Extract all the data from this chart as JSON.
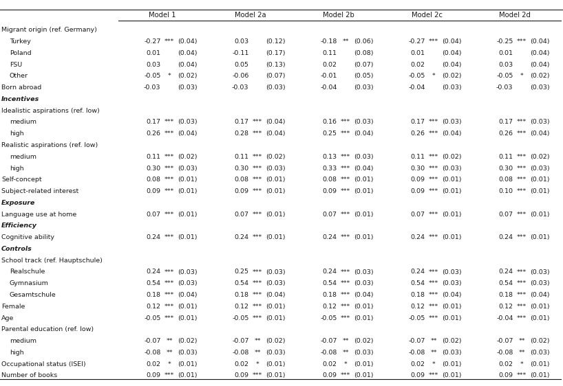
{
  "columns": [
    "Model 1",
    "Model 2a",
    "Model 2b",
    "Model 2c",
    "Model 2d"
  ],
  "rows": [
    {
      "label": "Migrant origin (ref. Germany)",
      "indent": 0,
      "italic": false,
      "data_row": false,
      "values": null
    },
    {
      "label": "Turkey",
      "indent": 1,
      "italic": false,
      "data_row": true,
      "values": [
        [
          -0.27,
          "***",
          "(0.04)"
        ],
        [
          0.03,
          "",
          "(0.12)"
        ],
        [
          -0.18,
          "**",
          "(0.06)"
        ],
        [
          -0.27,
          "***",
          "(0.04)"
        ],
        [
          -0.25,
          "***",
          "(0.04)"
        ]
      ]
    },
    {
      "label": "Poland",
      "indent": 1,
      "italic": false,
      "data_row": true,
      "values": [
        [
          0.01,
          "",
          "(0.04)"
        ],
        [
          -0.11,
          "",
          "(0.17)"
        ],
        [
          0.11,
          "",
          "(0.08)"
        ],
        [
          0.01,
          "",
          "(0.04)"
        ],
        [
          0.01,
          "",
          "(0.04)"
        ]
      ]
    },
    {
      "label": "FSU",
      "indent": 1,
      "italic": false,
      "data_row": true,
      "values": [
        [
          0.03,
          "",
          "(0.04)"
        ],
        [
          0.05,
          "",
          "(0.13)"
        ],
        [
          0.02,
          "",
          "(0.07)"
        ],
        [
          0.02,
          "",
          "(0.04)"
        ],
        [
          0.03,
          "",
          "(0.04)"
        ]
      ]
    },
    {
      "label": "Other",
      "indent": 1,
      "italic": false,
      "data_row": true,
      "values": [
        [
          -0.05,
          "*",
          "(0.02)"
        ],
        [
          -0.06,
          "",
          "(0.07)"
        ],
        [
          -0.01,
          "",
          "(0.05)"
        ],
        [
          -0.05,
          "*",
          "(0.02)"
        ],
        [
          -0.05,
          "*",
          "(0.02)"
        ]
      ]
    },
    {
      "label": "Born abroad",
      "indent": 0,
      "italic": false,
      "data_row": true,
      "values": [
        [
          -0.03,
          "",
          "(0.03)"
        ],
        [
          -0.03,
          "",
          "(0.03)"
        ],
        [
          -0.04,
          "",
          "(0.03)"
        ],
        [
          -0.04,
          "",
          "(0.03)"
        ],
        [
          -0.03,
          "",
          "(0.03)"
        ]
      ]
    },
    {
      "label": "Incentives",
      "indent": 0,
      "italic": true,
      "data_row": false,
      "values": null
    },
    {
      "label": "Idealistic aspirations (ref. low)",
      "indent": 0,
      "italic": false,
      "data_row": false,
      "values": null
    },
    {
      "label": "medium",
      "indent": 1,
      "italic": false,
      "data_row": true,
      "values": [
        [
          0.17,
          "***",
          "(0.03)"
        ],
        [
          0.17,
          "***",
          "(0.04)"
        ],
        [
          0.16,
          "***",
          "(0.03)"
        ],
        [
          0.17,
          "***",
          "(0.03)"
        ],
        [
          0.17,
          "***",
          "(0.03)"
        ]
      ]
    },
    {
      "label": "high",
      "indent": 1,
      "italic": false,
      "data_row": true,
      "values": [
        [
          0.26,
          "***",
          "(0.04)"
        ],
        [
          0.28,
          "***",
          "(0.04)"
        ],
        [
          0.25,
          "***",
          "(0.04)"
        ],
        [
          0.26,
          "***",
          "(0.04)"
        ],
        [
          0.26,
          "***",
          "(0.04)"
        ]
      ]
    },
    {
      "label": "Realistic aspirations (ref. low)",
      "indent": 0,
      "italic": false,
      "data_row": false,
      "values": null
    },
    {
      "label": "medium",
      "indent": 1,
      "italic": false,
      "data_row": true,
      "values": [
        [
          0.11,
          "***",
          "(0.02)"
        ],
        [
          0.11,
          "***",
          "(0.02)"
        ],
        [
          0.13,
          "***",
          "(0.03)"
        ],
        [
          0.11,
          "***",
          "(0.02)"
        ],
        [
          0.11,
          "***",
          "(0.02)"
        ]
      ]
    },
    {
      "label": "high",
      "indent": 1,
      "italic": false,
      "data_row": true,
      "values": [
        [
          0.3,
          "***",
          "(0.03)"
        ],
        [
          0.3,
          "***",
          "(0.03)"
        ],
        [
          0.33,
          "***",
          "(0.04)"
        ],
        [
          0.3,
          "***",
          "(0.03)"
        ],
        [
          0.3,
          "***",
          "(0.03)"
        ]
      ]
    },
    {
      "label": "Self-concept",
      "indent": 0,
      "italic": false,
      "data_row": true,
      "values": [
        [
          0.08,
          "***",
          "(0.01)"
        ],
        [
          0.08,
          "***",
          "(0.01)"
        ],
        [
          0.08,
          "***",
          "(0.01)"
        ],
        [
          0.09,
          "***",
          "(0.01)"
        ],
        [
          0.08,
          "***",
          "(0.01)"
        ]
      ]
    },
    {
      "label": "Subject-related interest",
      "indent": 0,
      "italic": false,
      "data_row": true,
      "values": [
        [
          0.09,
          "***",
          "(0.01)"
        ],
        [
          0.09,
          "***",
          "(0.01)"
        ],
        [
          0.09,
          "***",
          "(0.01)"
        ],
        [
          0.09,
          "***",
          "(0.01)"
        ],
        [
          0.1,
          "***",
          "(0.01)"
        ]
      ]
    },
    {
      "label": "Exposure",
      "indent": 0,
      "italic": true,
      "data_row": false,
      "values": null
    },
    {
      "label": "Language use at home",
      "indent": 0,
      "italic": false,
      "data_row": true,
      "values": [
        [
          0.07,
          "***",
          "(0.01)"
        ],
        [
          0.07,
          "***",
          "(0.01)"
        ],
        [
          0.07,
          "***",
          "(0.01)"
        ],
        [
          0.07,
          "***",
          "(0.01)"
        ],
        [
          0.07,
          "***",
          "(0.01)"
        ]
      ]
    },
    {
      "label": "Efficiency",
      "indent": 0,
      "italic": true,
      "data_row": false,
      "values": null
    },
    {
      "label": "Cognitive ability",
      "indent": 0,
      "italic": false,
      "data_row": true,
      "values": [
        [
          0.24,
          "***",
          "(0.01)"
        ],
        [
          0.24,
          "***",
          "(0.01)"
        ],
        [
          0.24,
          "***",
          "(0.01)"
        ],
        [
          0.24,
          "***",
          "(0.01)"
        ],
        [
          0.24,
          "***",
          "(0.01)"
        ]
      ]
    },
    {
      "label": "Controls",
      "indent": 0,
      "italic": true,
      "data_row": false,
      "values": null
    },
    {
      "label": "School track (ref. Hauptschule)",
      "indent": 0,
      "italic": false,
      "data_row": false,
      "values": null
    },
    {
      "label": "Realschule",
      "indent": 1,
      "italic": false,
      "data_row": true,
      "values": [
        [
          0.24,
          "***",
          "(0.03)"
        ],
        [
          0.25,
          "***",
          "(0.03)"
        ],
        [
          0.24,
          "***",
          "(0.03)"
        ],
        [
          0.24,
          "***",
          "(0.03)"
        ],
        [
          0.24,
          "***",
          "(0.03)"
        ]
      ]
    },
    {
      "label": "Gymnasium",
      "indent": 1,
      "italic": false,
      "data_row": true,
      "values": [
        [
          0.54,
          "***",
          "(0.03)"
        ],
        [
          0.54,
          "***",
          "(0.03)"
        ],
        [
          0.54,
          "***",
          "(0.03)"
        ],
        [
          0.54,
          "***",
          "(0.03)"
        ],
        [
          0.54,
          "***",
          "(0.03)"
        ]
      ]
    },
    {
      "label": "Gesamtschule",
      "indent": 1,
      "italic": false,
      "data_row": true,
      "values": [
        [
          0.18,
          "***",
          "(0.04)"
        ],
        [
          0.18,
          "***",
          "(0.04)"
        ],
        [
          0.18,
          "***",
          "(0.04)"
        ],
        [
          0.18,
          "***",
          "(0.04)"
        ],
        [
          0.18,
          "***",
          "(0.04)"
        ]
      ]
    },
    {
      "label": "Female",
      "indent": 0,
      "italic": false,
      "data_row": true,
      "values": [
        [
          0.12,
          "***",
          "(0.01)"
        ],
        [
          0.12,
          "***",
          "(0.01)"
        ],
        [
          0.12,
          "***",
          "(0.01)"
        ],
        [
          0.12,
          "***",
          "(0.01)"
        ],
        [
          0.12,
          "***",
          "(0.01)"
        ]
      ]
    },
    {
      "label": "Age",
      "indent": 0,
      "italic": false,
      "data_row": true,
      "values": [
        [
          -0.05,
          "***",
          "(0.01)"
        ],
        [
          -0.05,
          "***",
          "(0.01)"
        ],
        [
          -0.05,
          "***",
          "(0.01)"
        ],
        [
          -0.05,
          "***",
          "(0.01)"
        ],
        [
          -0.04,
          "***",
          "(0.01)"
        ]
      ]
    },
    {
      "label": "Parental education (ref. low)",
      "indent": 0,
      "italic": false,
      "data_row": false,
      "values": null
    },
    {
      "label": "medium",
      "indent": 1,
      "italic": false,
      "data_row": true,
      "values": [
        [
          -0.07,
          "**",
          "(0.02)"
        ],
        [
          -0.07,
          "**",
          "(0.02)"
        ],
        [
          -0.07,
          "**",
          "(0.02)"
        ],
        [
          -0.07,
          "**",
          "(0.02)"
        ],
        [
          -0.07,
          "**",
          "(0.02)"
        ]
      ]
    },
    {
      "label": "high",
      "indent": 1,
      "italic": false,
      "data_row": true,
      "values": [
        [
          -0.08,
          "**",
          "(0.03)"
        ],
        [
          -0.08,
          "**",
          "(0.03)"
        ],
        [
          -0.08,
          "**",
          "(0.03)"
        ],
        [
          -0.08,
          "**",
          "(0.03)"
        ],
        [
          -0.08,
          "**",
          "(0.03)"
        ]
      ]
    },
    {
      "label": "Occupational status (ISEI)",
      "indent": 0,
      "italic": false,
      "data_row": true,
      "values": [
        [
          0.02,
          "*",
          "(0.01)"
        ],
        [
          0.02,
          "*",
          "(0.01)"
        ],
        [
          0.02,
          "*",
          "(0.01)"
        ],
        [
          0.02,
          "*",
          "(0.01)"
        ],
        [
          0.02,
          "*",
          "(0.01)"
        ]
      ]
    },
    {
      "label": "Number of books",
      "indent": 0,
      "italic": false,
      "data_row": true,
      "values": [
        [
          0.09,
          "***",
          "(0.01)"
        ],
        [
          0.09,
          "***",
          "(0.01)"
        ],
        [
          0.09,
          "***",
          "(0.01)"
        ],
        [
          0.09,
          "***",
          "(0.01)"
        ],
        [
          0.09,
          "***",
          "(0.01)"
        ]
      ]
    }
  ],
  "bg_color": "#ffffff",
  "text_color": "#1a1a1a",
  "font_size": 6.8,
  "col_header_fs": 7.2
}
